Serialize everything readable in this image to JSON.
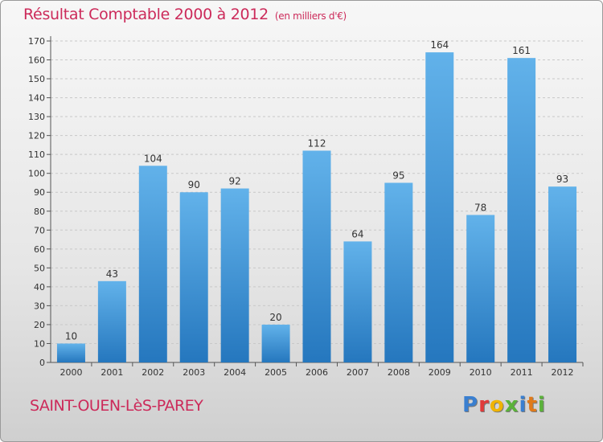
{
  "header": {
    "title": "Résultat Comptable 2000 à 2012",
    "subtitle": "(en milliers d'€)"
  },
  "footer": {
    "town": "SAINT-OUEN-LèS-PAREY",
    "logo_letters": [
      "P",
      "r",
      "o",
      "x",
      "i",
      "t",
      "i"
    ],
    "logo_colors": [
      "#3a7fd0",
      "#e03a3a",
      "#f0b400",
      "#5bb23a",
      "#3a7fd0",
      "#e07a1a",
      "#5bb23a"
    ]
  },
  "colors": {
    "bar_top": "#62b2ea",
    "bar_bottom": "#2577be",
    "grid": "#c8c8c8",
    "text": "#cc2a5a"
  },
  "chart_data": {
    "type": "bar",
    "title": "Résultat Comptable 2000 à 2012",
    "subtitle": "(en milliers d'€)",
    "categories": [
      "2000",
      "2001",
      "2002",
      "2003",
      "2004",
      "2005",
      "2006",
      "2007",
      "2008",
      "2009",
      "2010",
      "2011",
      "2012"
    ],
    "values": [
      10,
      43,
      104,
      90,
      92,
      20,
      112,
      64,
      95,
      164,
      78,
      161,
      93
    ],
    "xlabel": "",
    "ylabel": "",
    "ylim": [
      0,
      170
    ],
    "yticks": [
      0,
      10,
      20,
      30,
      40,
      50,
      60,
      70,
      80,
      90,
      100,
      110,
      120,
      130,
      140,
      150,
      160,
      170
    ],
    "grid": true
  }
}
